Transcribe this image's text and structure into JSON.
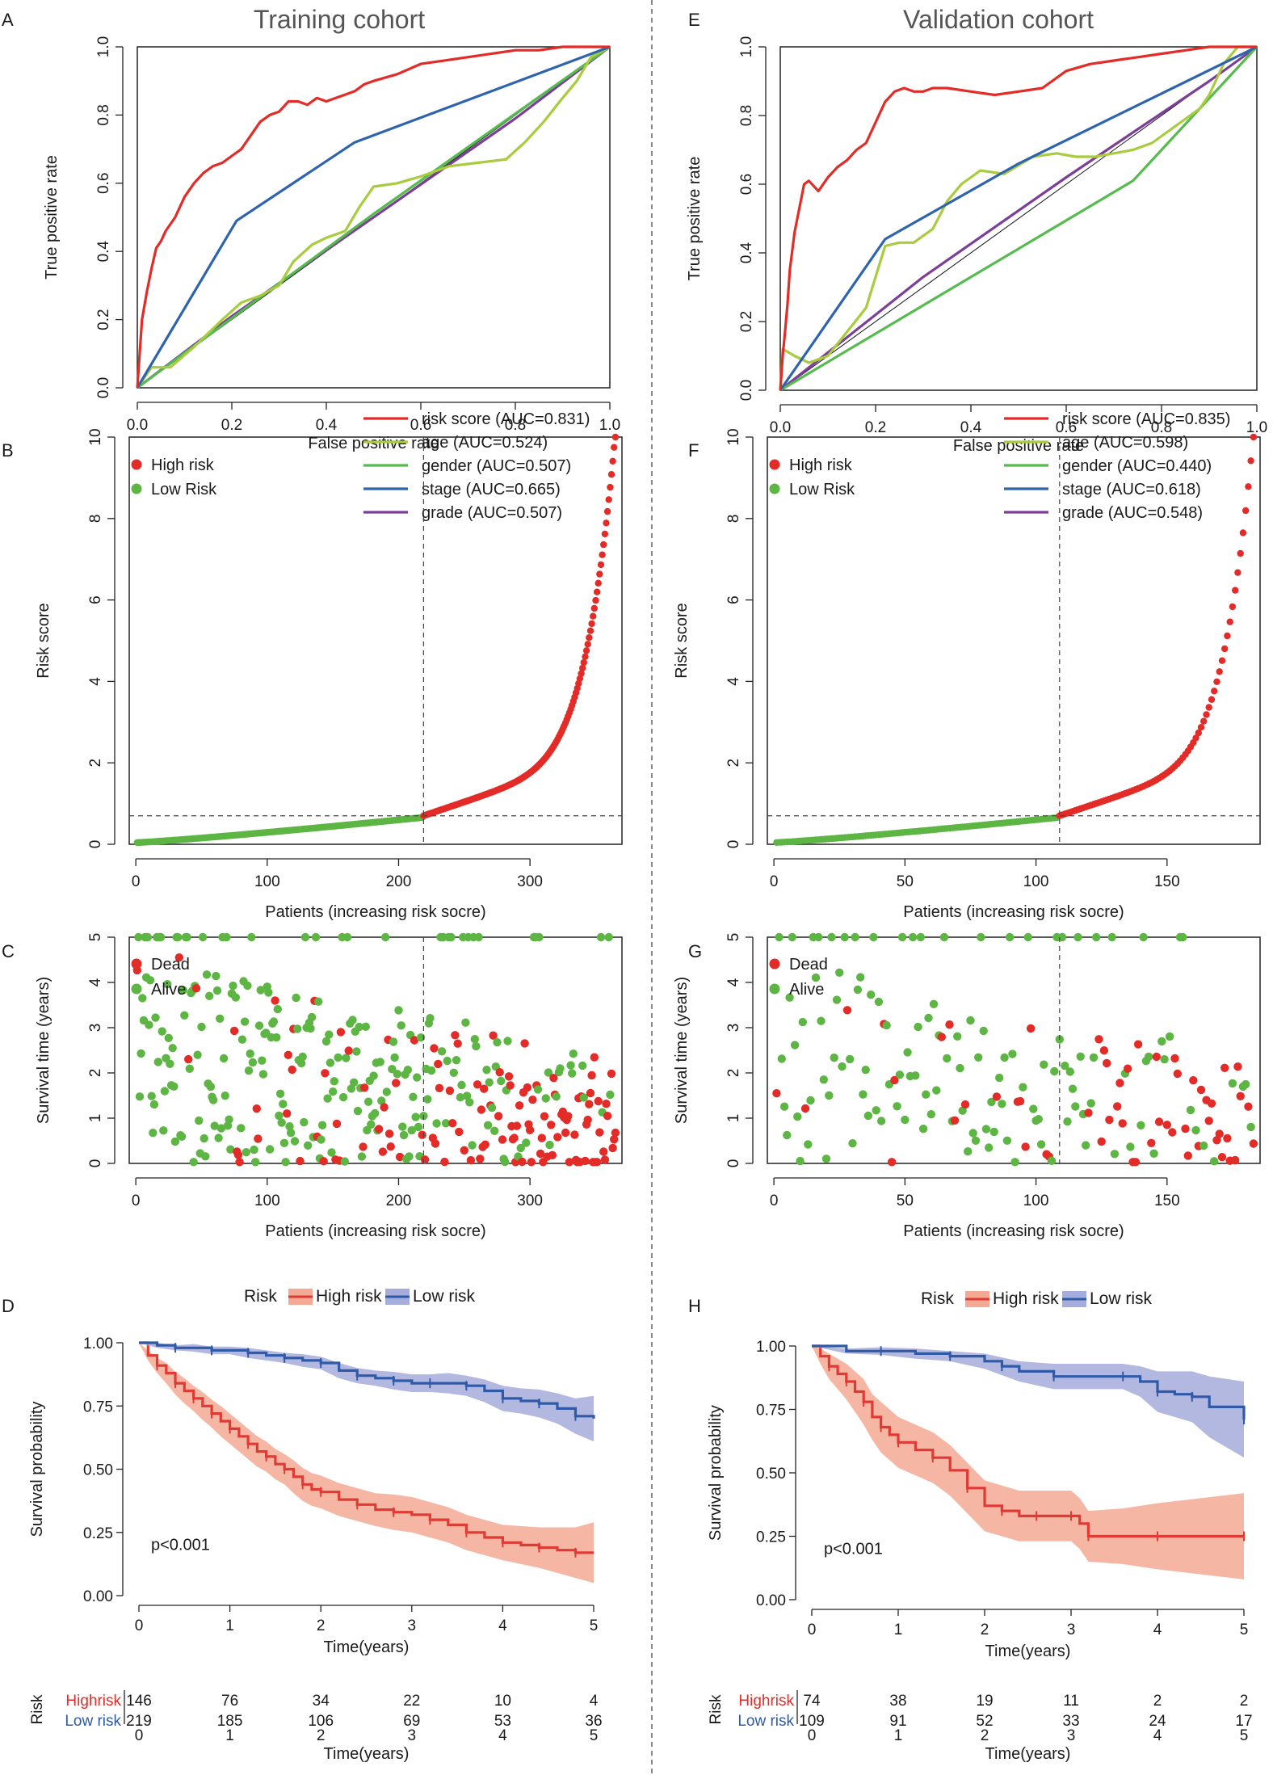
{
  "figure": {
    "divider_color": "#8a8a8a"
  },
  "colors": {
    "risk_score": "#e32b27",
    "age": "#a8cc3e",
    "gender": "#56bb4e",
    "stage": "#2e64ad",
    "grade": "#7b3f98",
    "high_point": "#e32b27",
    "low_point": "#5db543",
    "km_high": "#e03a34",
    "km_low": "#2f5aa8",
    "km_high_band": "#f4a994",
    "km_low_band": "#a6acdc",
    "high_text": "#e32b27",
    "low_text": "#2f5aa8"
  },
  "chart_data": [
    {
      "id": "A",
      "panel_label": "A",
      "cohort_title": "Training cohort",
      "type": "line",
      "xlabel": "False positive rate",
      "ylabel": "True positive rate",
      "xlim": [
        0,
        1
      ],
      "ylim": [
        0,
        1
      ],
      "xticks": [
        "0.0",
        "0.2",
        "0.4",
        "0.6",
        "0.8",
        "1.0"
      ],
      "yticks": [
        "0.0",
        "0.2",
        "0.4",
        "0.6",
        "0.8",
        "1.0"
      ],
      "series": [
        {
          "key": "risk_score",
          "name": "risk score (AUC=0.831)",
          "x": [
            0,
            0.005,
            0.01,
            0.02,
            0.03,
            0.04,
            0.05,
            0.06,
            0.08,
            0.1,
            0.12,
            0.14,
            0.16,
            0.18,
            0.2,
            0.22,
            0.24,
            0.26,
            0.28,
            0.3,
            0.32,
            0.34,
            0.36,
            0.38,
            0.4,
            0.42,
            0.44,
            0.46,
            0.48,
            0.5,
            0.55,
            0.6,
            0.65,
            0.7,
            0.75,
            0.8,
            0.85,
            0.9,
            0.95,
            1.0
          ],
          "y": [
            0,
            0.1,
            0.2,
            0.28,
            0.35,
            0.41,
            0.43,
            0.46,
            0.5,
            0.56,
            0.6,
            0.63,
            0.65,
            0.66,
            0.68,
            0.7,
            0.74,
            0.78,
            0.8,
            0.81,
            0.84,
            0.84,
            0.83,
            0.85,
            0.84,
            0.85,
            0.86,
            0.87,
            0.89,
            0.9,
            0.92,
            0.95,
            0.96,
            0.97,
            0.98,
            0.99,
            0.99,
            1.0,
            1.0,
            1.0
          ]
        },
        {
          "key": "age",
          "name": "age (AUC=0.524)",
          "x": [
            0,
            0.03,
            0.07,
            0.12,
            0.18,
            0.22,
            0.26,
            0.3,
            0.33,
            0.37,
            0.4,
            0.42,
            0.44,
            0.47,
            0.5,
            0.55,
            0.6,
            0.66,
            0.72,
            0.78,
            0.82,
            0.86,
            0.9,
            0.93,
            0.96,
            1.0
          ],
          "y": [
            0,
            0.06,
            0.06,
            0.12,
            0.2,
            0.25,
            0.27,
            0.3,
            0.37,
            0.42,
            0.44,
            0.45,
            0.46,
            0.53,
            0.59,
            0.6,
            0.62,
            0.65,
            0.66,
            0.67,
            0.72,
            0.78,
            0.85,
            0.9,
            0.97,
            1.0
          ]
        },
        {
          "key": "gender",
          "name": "gender (AUC=0.507)",
          "x": [
            0,
            0.5,
            1
          ],
          "y": [
            0,
            0.51,
            1
          ]
        },
        {
          "key": "stage",
          "name": "stage (AUC=0.665)",
          "x": [
            0,
            0.21,
            0.46,
            1
          ],
          "y": [
            0,
            0.49,
            0.72,
            1
          ]
        },
        {
          "key": "grade",
          "name": "grade (AUC=0.507)",
          "x": [
            0,
            0.2,
            0.5,
            0.8,
            1
          ],
          "y": [
            0,
            0.21,
            0.5,
            0.79,
            1
          ]
        }
      ],
      "diagonal": true
    },
    {
      "id": "E",
      "panel_label": "E",
      "cohort_title": "Validation cohort",
      "type": "line",
      "xlabel": "False positive rate",
      "ylabel": "True positive rate",
      "xlim": [
        0,
        1
      ],
      "ylim": [
        0,
        1
      ],
      "xticks": [
        "0.0",
        "0.2",
        "0.4",
        "0.6",
        "0.8",
        "1.0"
      ],
      "yticks": [
        "0.0",
        "0.2",
        "0.4",
        "0.6",
        "0.8",
        "1.0"
      ],
      "series": [
        {
          "key": "risk_score",
          "name": "risk score (AUC=0.835)",
          "x": [
            0,
            0.005,
            0.01,
            0.015,
            0.02,
            0.03,
            0.04,
            0.05,
            0.06,
            0.08,
            0.1,
            0.12,
            0.14,
            0.16,
            0.18,
            0.2,
            0.22,
            0.24,
            0.26,
            0.28,
            0.3,
            0.32,
            0.35,
            0.4,
            0.45,
            0.5,
            0.55,
            0.6,
            0.65,
            0.7,
            0.75,
            0.8,
            0.85,
            0.9,
            0.95,
            1.0
          ],
          "y": [
            0,
            0.1,
            0.17,
            0.25,
            0.35,
            0.46,
            0.53,
            0.6,
            0.61,
            0.58,
            0.62,
            0.65,
            0.67,
            0.7,
            0.72,
            0.78,
            0.84,
            0.87,
            0.88,
            0.87,
            0.87,
            0.88,
            0.88,
            0.87,
            0.86,
            0.87,
            0.88,
            0.93,
            0.95,
            0.96,
            0.97,
            0.98,
            0.99,
            1.0,
            1.0,
            1.0
          ]
        },
        {
          "key": "age",
          "name": "age (AUC=0.598)",
          "x": [
            0,
            0.005,
            0.03,
            0.06,
            0.1,
            0.14,
            0.18,
            0.22,
            0.25,
            0.28,
            0.32,
            0.35,
            0.38,
            0.42,
            0.47,
            0.53,
            0.58,
            0.62,
            0.66,
            0.7,
            0.74,
            0.78,
            0.82,
            0.86,
            0.88,
            0.9,
            0.93,
            0.96,
            1.0
          ],
          "y": [
            0,
            0.12,
            0.1,
            0.08,
            0.1,
            0.17,
            0.24,
            0.42,
            0.43,
            0.43,
            0.47,
            0.55,
            0.6,
            0.64,
            0.63,
            0.68,
            0.69,
            0.68,
            0.68,
            0.69,
            0.7,
            0.72,
            0.76,
            0.8,
            0.82,
            0.86,
            0.95,
            1.0,
            1.0
          ]
        },
        {
          "key": "gender",
          "name": "gender (AUC=0.440)",
          "x": [
            0,
            0.74,
            1
          ],
          "y": [
            0,
            0.61,
            1
          ]
        },
        {
          "key": "stage",
          "name": "stage (AUC=0.618)",
          "x": [
            0,
            0.22,
            0.5,
            1
          ],
          "y": [
            0,
            0.44,
            0.66,
            1
          ]
        },
        {
          "key": "grade",
          "name": "grade (AUC=0.548)",
          "x": [
            0,
            0.3,
            0.6,
            0.9,
            1
          ],
          "y": [
            0,
            0.33,
            0.62,
            0.9,
            1
          ]
        }
      ],
      "diagonal": true
    },
    {
      "id": "B",
      "panel_label": "B",
      "type": "scatter",
      "xlabel": "Patients (increasing risk socre)",
      "ylabel": "Risk score",
      "n": 365,
      "cutoff_index": 219,
      "cutoff_value": 0.7,
      "xlim": [
        -5,
        370
      ],
      "ylim": [
        0,
        10
      ],
      "xticks": [
        "0",
        "100",
        "200",
        "300"
      ],
      "xtick_values": [
        0,
        100,
        200,
        300
      ],
      "yticks": [
        "0",
        "2",
        "4",
        "6",
        "8",
        "10"
      ],
      "ytick_values": [
        0,
        2,
        4,
        6,
        8,
        10
      ],
      "legend": [
        "High risk",
        "Low Risk"
      ],
      "score_curve": {
        "max": 10.0,
        "tail_start": 290
      }
    },
    {
      "id": "F",
      "panel_label": "F",
      "type": "scatter",
      "xlabel": "Patients (increasing risk socre)",
      "ylabel": "Risk score",
      "n": 183,
      "cutoff_index": 109,
      "cutoff_value": 0.7,
      "xlim": [
        -2.5,
        185.5
      ],
      "ylim": [
        0,
        10
      ],
      "xticks": [
        "0",
        "50",
        "100",
        "150"
      ],
      "xtick_values": [
        0,
        50,
        100,
        150
      ],
      "yticks": [
        "0",
        "2",
        "4",
        "6",
        "8",
        "10"
      ],
      "ytick_values": [
        0,
        2,
        4,
        6,
        8,
        10
      ],
      "legend": [
        "High risk",
        "Low Risk"
      ],
      "score_curve": {
        "max": 10.0,
        "tail_start": 145
      }
    },
    {
      "id": "C",
      "panel_label": "C",
      "type": "scatter",
      "xlabel": "Patients (increasing risk socre)",
      "ylabel": "Survival time (years)",
      "n": 365,
      "cutoff_index": 219,
      "xlim": [
        -5,
        370
      ],
      "ylim": [
        0,
        5
      ],
      "xticks": [
        "0",
        "100",
        "200",
        "300"
      ],
      "xtick_values": [
        0,
        100,
        200,
        300
      ],
      "yticks": [
        "0",
        "1",
        "2",
        "3",
        "4",
        "5"
      ],
      "ytick_values": [
        0,
        1,
        2,
        3,
        4,
        5
      ],
      "legend": [
        "Dead",
        "Alive"
      ],
      "seed": 7
    },
    {
      "id": "G",
      "panel_label": "G",
      "type": "scatter",
      "xlabel": "Patients (increasing risk socre)",
      "ylabel": "Survival time (years)",
      "n": 183,
      "cutoff_index": 109,
      "xlim": [
        -2.5,
        185.5
      ],
      "ylim": [
        0,
        5
      ],
      "xticks": [
        "0",
        "50",
        "100",
        "150"
      ],
      "xtick_values": [
        0,
        50,
        100,
        150
      ],
      "yticks": [
        "0",
        "1",
        "2",
        "3",
        "4",
        "5"
      ],
      "ytick_values": [
        0,
        1,
        2,
        3,
        4,
        5
      ],
      "legend": [
        "Dead",
        "Alive"
      ],
      "seed": 11
    },
    {
      "id": "D",
      "panel_label": "D",
      "type": "line",
      "legend_title": "Risk",
      "legend": [
        "High risk",
        "Low risk"
      ],
      "xlabel": "Time(years)",
      "ylabel": "Survival probability",
      "xlim": [
        0,
        5
      ],
      "ylim": [
        0,
        1
      ],
      "xticks": [
        "0",
        "1",
        "2",
        "3",
        "4",
        "5"
      ],
      "yticks": [
        "0.00",
        "0.25",
        "0.50",
        "0.75",
        "1.00"
      ],
      "pvalue": "p<0.001",
      "high": {
        "t": [
          0,
          0.1,
          0.2,
          0.3,
          0.4,
          0.5,
          0.6,
          0.7,
          0.8,
          0.9,
          1.0,
          1.1,
          1.2,
          1.3,
          1.4,
          1.5,
          1.6,
          1.7,
          1.8,
          1.9,
          2.0,
          2.2,
          2.4,
          2.6,
          2.8,
          3.0,
          3.2,
          3.4,
          3.6,
          3.8,
          4.0,
          4.2,
          4.4,
          4.6,
          4.8,
          5.0
        ],
        "s": [
          1.0,
          0.95,
          0.91,
          0.88,
          0.84,
          0.81,
          0.78,
          0.75,
          0.72,
          0.69,
          0.66,
          0.63,
          0.6,
          0.57,
          0.55,
          0.52,
          0.5,
          0.47,
          0.44,
          0.42,
          0.41,
          0.38,
          0.36,
          0.34,
          0.33,
          0.32,
          0.3,
          0.28,
          0.25,
          0.23,
          0.21,
          0.2,
          0.19,
          0.18,
          0.17,
          0.17
        ],
        "band": [
          0.0,
          0.02,
          0.03,
          0.04,
          0.045,
          0.05,
          0.05,
          0.055,
          0.055,
          0.06,
          0.06,
          0.06,
          0.06,
          0.06,
          0.06,
          0.06,
          0.06,
          0.065,
          0.065,
          0.065,
          0.065,
          0.065,
          0.065,
          0.065,
          0.07,
          0.07,
          0.07,
          0.07,
          0.07,
          0.07,
          0.07,
          0.075,
          0.08,
          0.09,
          0.1,
          0.12
        ]
      },
      "low": {
        "t": [
          0,
          0.2,
          0.4,
          0.6,
          0.8,
          1.0,
          1.2,
          1.4,
          1.6,
          1.8,
          2.0,
          2.2,
          2.4,
          2.6,
          2.8,
          3.0,
          3.2,
          3.4,
          3.6,
          3.8,
          4.0,
          4.2,
          4.4,
          4.6,
          4.8,
          5.0
        ],
        "s": [
          1.0,
          0.99,
          0.98,
          0.98,
          0.97,
          0.97,
          0.96,
          0.95,
          0.94,
          0.93,
          0.92,
          0.89,
          0.87,
          0.86,
          0.85,
          0.84,
          0.84,
          0.84,
          0.83,
          0.81,
          0.78,
          0.77,
          0.76,
          0.74,
          0.71,
          0.7
        ],
        "band": [
          0.0,
          0.01,
          0.01,
          0.015,
          0.015,
          0.015,
          0.02,
          0.02,
          0.02,
          0.025,
          0.025,
          0.03,
          0.03,
          0.03,
          0.035,
          0.035,
          0.035,
          0.04,
          0.04,
          0.045,
          0.05,
          0.05,
          0.055,
          0.06,
          0.07,
          0.09
        ]
      },
      "risk_table": {
        "title": "Risk",
        "rows": [
          {
            "label": "Highrisk",
            "counts": [
              "146",
              "76",
              "34",
              "22",
              "10",
              "4"
            ]
          },
          {
            "label": "Low risk",
            "counts": [
              "219",
              "185",
              "106",
              "69",
              "53",
              "36"
            ]
          }
        ],
        "xlabel": "Time(years)",
        "xticks": [
          "0",
          "1",
          "2",
          "3",
          "4",
          "5"
        ]
      }
    },
    {
      "id": "H",
      "panel_label": "H",
      "type": "line",
      "legend_title": "Risk",
      "legend": [
        "High risk",
        "Low risk"
      ],
      "xlabel": "Time(years)",
      "ylabel": "Survival probability",
      "xlim": [
        0,
        5
      ],
      "ylim": [
        0,
        1
      ],
      "xticks": [
        "0",
        "1",
        "2",
        "3",
        "4",
        "5"
      ],
      "yticks": [
        "0.00",
        "0.25",
        "0.50",
        "0.75",
        "1.00"
      ],
      "pvalue": "p<0.001",
      "high": {
        "t": [
          0,
          0.1,
          0.2,
          0.3,
          0.4,
          0.5,
          0.6,
          0.7,
          0.8,
          0.9,
          1.0,
          1.2,
          1.4,
          1.6,
          1.8,
          2.0,
          2.2,
          2.4,
          2.6,
          2.8,
          3.0,
          3.1,
          3.2,
          3.6,
          4.0,
          4.5,
          5.0
        ],
        "s": [
          1.0,
          0.96,
          0.92,
          0.89,
          0.86,
          0.82,
          0.78,
          0.72,
          0.68,
          0.65,
          0.62,
          0.59,
          0.56,
          0.51,
          0.44,
          0.37,
          0.35,
          0.33,
          0.33,
          0.33,
          0.33,
          0.3,
          0.25,
          0.25,
          0.25,
          0.25,
          0.25
        ],
        "band": [
          0.0,
          0.03,
          0.05,
          0.06,
          0.07,
          0.08,
          0.09,
          0.09,
          0.1,
          0.1,
          0.1,
          0.1,
          0.1,
          0.1,
          0.1,
          0.1,
          0.1,
          0.1,
          0.1,
          0.1,
          0.1,
          0.1,
          0.1,
          0.11,
          0.13,
          0.15,
          0.17
        ]
      },
      "low": {
        "t": [
          0,
          0.4,
          0.8,
          1.2,
          1.6,
          2.0,
          2.2,
          2.4,
          2.8,
          3.2,
          3.6,
          3.8,
          4.0,
          4.2,
          4.4,
          4.6,
          5.0
        ],
        "s": [
          1.0,
          0.98,
          0.98,
          0.97,
          0.96,
          0.94,
          0.92,
          0.9,
          0.88,
          0.88,
          0.88,
          0.86,
          0.82,
          0.81,
          0.8,
          0.76,
          0.71
        ],
        "band": [
          0.0,
          0.01,
          0.015,
          0.02,
          0.02,
          0.03,
          0.035,
          0.04,
          0.05,
          0.05,
          0.05,
          0.06,
          0.08,
          0.09,
          0.1,
          0.12,
          0.15
        ]
      },
      "risk_table": {
        "title": "Risk",
        "rows": [
          {
            "label": "Highrisk",
            "counts": [
              "74",
              "38",
              "19",
              "11",
              "2",
              "2"
            ]
          },
          {
            "label": "Low risk",
            "counts": [
              "109",
              "91",
              "52",
              "33",
              "24",
              "17"
            ]
          }
        ],
        "xlabel": "Time(years)",
        "xticks": [
          "0",
          "1",
          "2",
          "3",
          "4",
          "5"
        ]
      }
    }
  ]
}
